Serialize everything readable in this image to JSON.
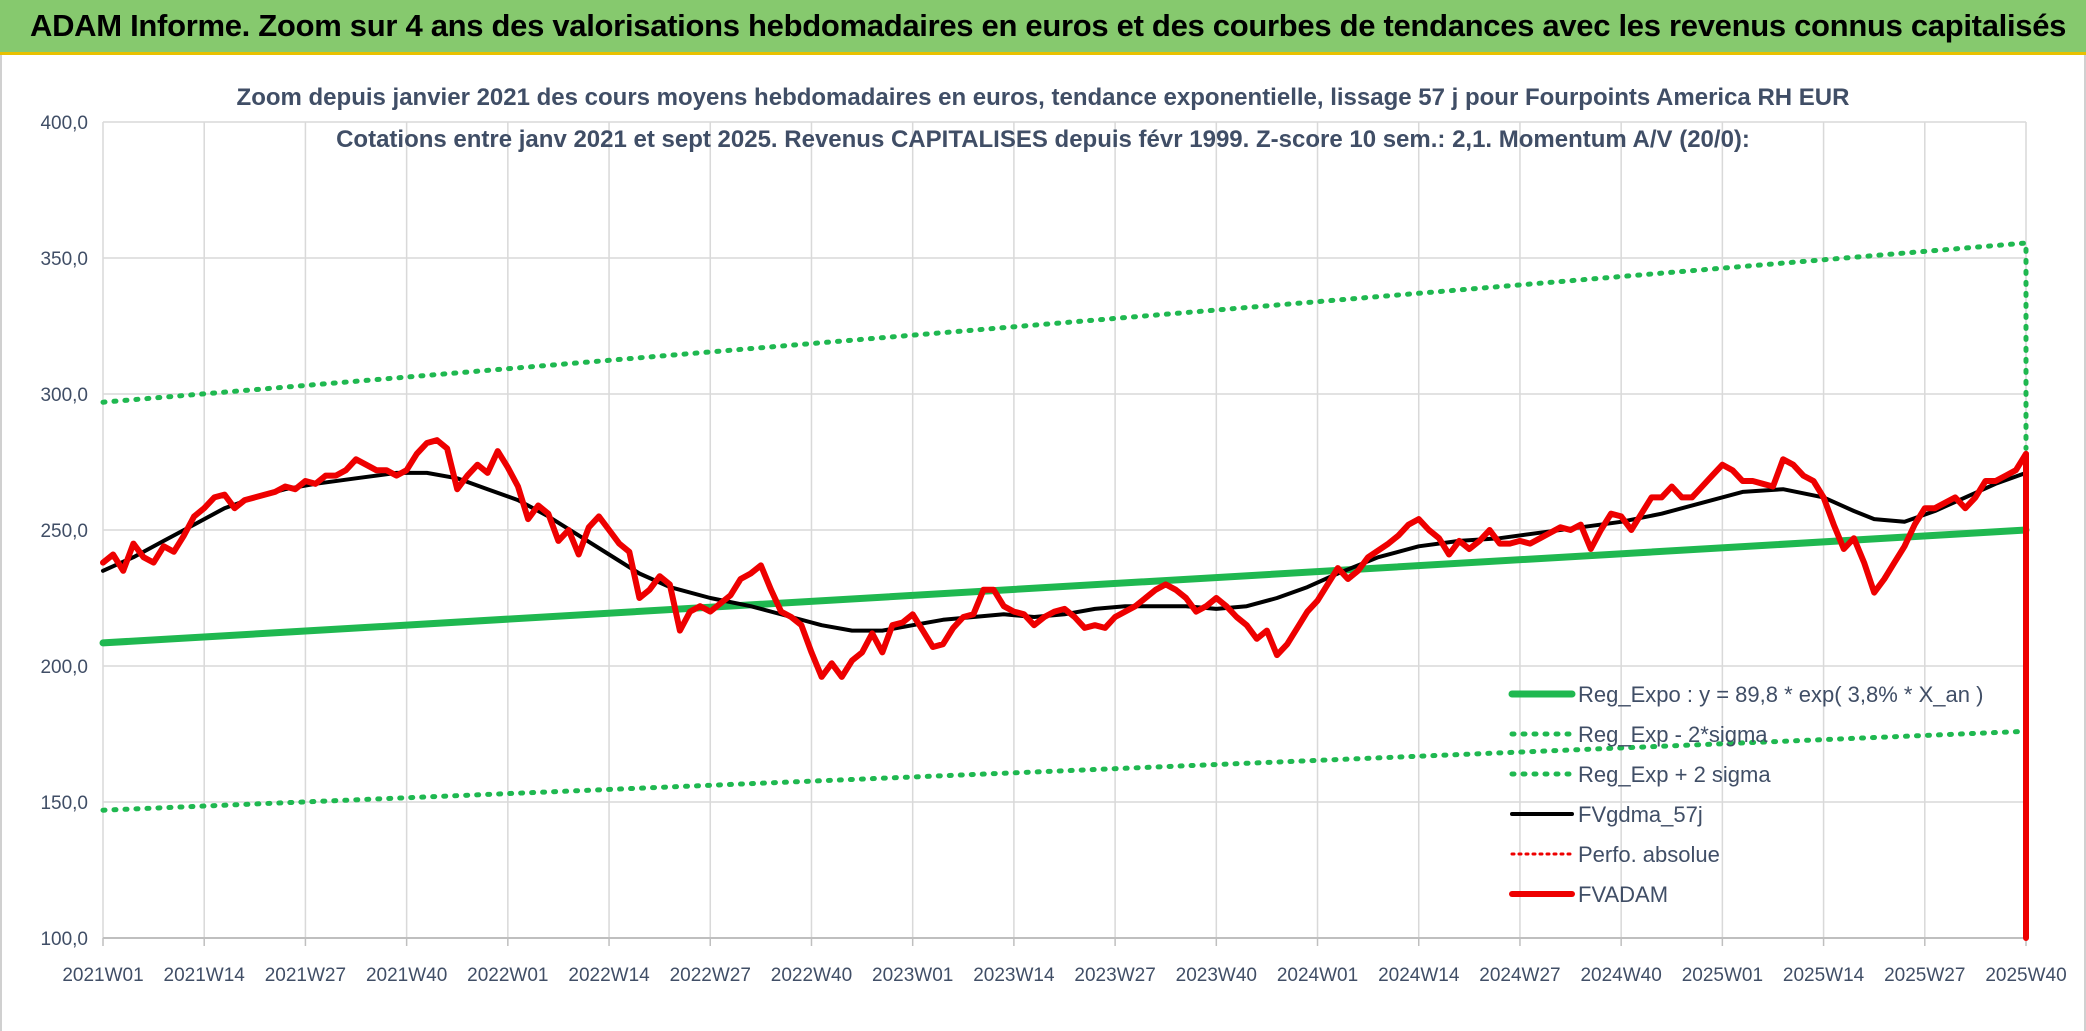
{
  "header": {
    "title": "ADAM Informe. Zoom sur 4 ans des valorisations hebdomadaires en euros et des courbes de tendances avec les revenus connus capitalisés"
  },
  "colors": {
    "banner": "#86c96e",
    "trend": "#1fb850",
    "average": "#000000",
    "price": "#ee0000",
    "perf": "#ee0000"
  },
  "chart_data": {
    "type": "line",
    "title": "Zoom depuis janvier 2021 des cours moyens hebdomadaires en euros, tendance exponentielle, lissage 57 j pour Fourpoints America RH EUR",
    "subtitle": "Cotations entre janv 2021 et sept 2025. Revenus CAPITALISES depuis févr 1999. Z-score 10 sem.: 2,1. Momentum A/V (20/0):",
    "xlabel": "",
    "ylabel": "",
    "ylim": [
      100,
      400
    ],
    "y_ticks": [
      "100,0",
      "150,0",
      "200,0",
      "250,0",
      "300,0",
      "350,0",
      "400,0"
    ],
    "x_tick_labels": [
      "2021W01",
      "2021W14",
      "2021W27",
      "2021W40",
      "2022W01",
      "2022W14",
      "2022W27",
      "2022W40",
      "2023W01",
      "2023W14",
      "2023W27",
      "2023W40",
      "2024W01",
      "2024W14",
      "2024W27",
      "2024W40",
      "2025W01",
      "2025W14",
      "2025W27",
      "2025W40"
    ],
    "grid": true,
    "legend_position": "bottom-right",
    "series": [
      {
        "name": "Reg_Expo : y = 89,8 * exp( 3,8% *  X_an )",
        "style": "solid-thick",
        "points": [
          [
            0,
            208.5
          ],
          [
            19,
            250
          ]
        ]
      },
      {
        "name": "Reg_Exp - 2*sigma",
        "style": "dotted",
        "points": [
          [
            0,
            147
          ],
          [
            19,
            176
          ]
        ]
      },
      {
        "name": "Reg_Exp + 2 sigma",
        "style": "dotted",
        "points": [
          [
            0,
            297
          ],
          [
            19,
            355.5
          ],
          [
            19,
            280
          ]
        ]
      },
      {
        "name": "FVgdma_57j",
        "style": "solid",
        "points": [
          [
            0,
            235
          ],
          [
            0.3,
            240
          ],
          [
            0.6,
            246
          ],
          [
            0.9,
            252
          ],
          [
            1.2,
            258
          ],
          [
            1.5,
            262
          ],
          [
            1.8,
            265
          ],
          [
            2.1,
            267
          ],
          [
            2.5,
            269
          ],
          [
            2.9,
            271
          ],
          [
            3.2,
            271
          ],
          [
            3.5,
            269
          ],
          [
            3.8,
            265
          ],
          [
            4.1,
            261
          ],
          [
            4.4,
            255
          ],
          [
            4.7,
            248
          ],
          [
            5.0,
            241
          ],
          [
            5.3,
            234
          ],
          [
            5.6,
            229
          ],
          [
            6.0,
            225
          ],
          [
            6.4,
            222
          ],
          [
            6.8,
            218
          ],
          [
            7.1,
            215
          ],
          [
            7.4,
            213
          ],
          [
            7.7,
            213
          ],
          [
            8.0,
            215
          ],
          [
            8.3,
            217
          ],
          [
            8.6,
            218
          ],
          [
            8.9,
            219
          ],
          [
            9.2,
            218
          ],
          [
            9.5,
            219
          ],
          [
            9.8,
            221
          ],
          [
            10.1,
            222
          ],
          [
            10.4,
            222
          ],
          [
            10.7,
            222
          ],
          [
            11.0,
            221
          ],
          [
            11.3,
            222
          ],
          [
            11.6,
            225
          ],
          [
            11.9,
            229
          ],
          [
            12.2,
            234
          ],
          [
            12.6,
            240
          ],
          [
            13.0,
            244
          ],
          [
            13.4,
            246
          ],
          [
            13.8,
            247
          ],
          [
            14.2,
            249
          ],
          [
            14.6,
            251
          ],
          [
            15.0,
            253
          ],
          [
            15.4,
            256
          ],
          [
            15.8,
            260
          ],
          [
            16.2,
            264
          ],
          [
            16.6,
            265
          ],
          [
            17.0,
            262
          ],
          [
            17.3,
            257
          ],
          [
            17.5,
            254
          ],
          [
            17.8,
            253
          ],
          [
            18.1,
            257
          ],
          [
            18.4,
            262
          ],
          [
            18.7,
            267
          ],
          [
            19.0,
            271
          ]
        ]
      },
      {
        "name": "Perfo. absolue",
        "style": "dotted",
        "points": []
      },
      {
        "name": "FVADAM",
        "style": "solid-thick",
        "points": [
          [
            0,
            238
          ],
          [
            0.1,
            241
          ],
          [
            0.2,
            235
          ],
          [
            0.3,
            245
          ],
          [
            0.4,
            240
          ],
          [
            0.5,
            238
          ],
          [
            0.6,
            244
          ],
          [
            0.7,
            242
          ],
          [
            0.8,
            248
          ],
          [
            0.9,
            255
          ],
          [
            1.0,
            258
          ],
          [
            1.1,
            262
          ],
          [
            1.2,
            263
          ],
          [
            1.3,
            258
          ],
          [
            1.4,
            261
          ],
          [
            1.5,
            262
          ],
          [
            1.6,
            263
          ],
          [
            1.7,
            264
          ],
          [
            1.8,
            266
          ],
          [
            1.9,
            265
          ],
          [
            2.0,
            268
          ],
          [
            2.1,
            267
          ],
          [
            2.2,
            270
          ],
          [
            2.3,
            270
          ],
          [
            2.4,
            272
          ],
          [
            2.5,
            276
          ],
          [
            2.6,
            274
          ],
          [
            2.7,
            272
          ],
          [
            2.8,
            272
          ],
          [
            2.9,
            270
          ],
          [
            3.0,
            272
          ],
          [
            3.1,
            278
          ],
          [
            3.2,
            282
          ],
          [
            3.3,
            283
          ],
          [
            3.4,
            280
          ],
          [
            3.5,
            265
          ],
          [
            3.6,
            270
          ],
          [
            3.7,
            274
          ],
          [
            3.8,
            271
          ],
          [
            3.9,
            279
          ],
          [
            4.0,
            273
          ],
          [
            4.1,
            266
          ],
          [
            4.2,
            254
          ],
          [
            4.3,
            259
          ],
          [
            4.4,
            256
          ],
          [
            4.5,
            246
          ],
          [
            4.6,
            250
          ],
          [
            4.7,
            241
          ],
          [
            4.8,
            251
          ],
          [
            4.9,
            255
          ],
          [
            5.0,
            250
          ],
          [
            5.1,
            245
          ],
          [
            5.2,
            242
          ],
          [
            5.3,
            225
          ],
          [
            5.4,
            228
          ],
          [
            5.5,
            233
          ],
          [
            5.6,
            230
          ],
          [
            5.7,
            213
          ],
          [
            5.8,
            220
          ],
          [
            5.9,
            222
          ],
          [
            6.0,
            220
          ],
          [
            6.2,
            226
          ],
          [
            6.3,
            232
          ],
          [
            6.4,
            234
          ],
          [
            6.5,
            237
          ],
          [
            6.6,
            228
          ],
          [
            6.7,
            220
          ],
          [
            6.8,
            218
          ],
          [
            6.9,
            215
          ],
          [
            7.0,
            205
          ],
          [
            7.1,
            196
          ],
          [
            7.2,
            201
          ],
          [
            7.3,
            196
          ],
          [
            7.4,
            202
          ],
          [
            7.5,
            205
          ],
          [
            7.6,
            212
          ],
          [
            7.7,
            205
          ],
          [
            7.8,
            215
          ],
          [
            7.9,
            216
          ],
          [
            8.0,
            219
          ],
          [
            8.1,
            213
          ],
          [
            8.2,
            207
          ],
          [
            8.3,
            208
          ],
          [
            8.4,
            214
          ],
          [
            8.5,
            218
          ],
          [
            8.6,
            219
          ],
          [
            8.7,
            228
          ],
          [
            8.8,
            228
          ],
          [
            8.9,
            222
          ],
          [
            9.0,
            220
          ],
          [
            9.1,
            219
          ],
          [
            9.2,
            215
          ],
          [
            9.3,
            218
          ],
          [
            9.4,
            220
          ],
          [
            9.5,
            221
          ],
          [
            9.6,
            218
          ],
          [
            9.7,
            214
          ],
          [
            9.8,
            215
          ],
          [
            9.9,
            214
          ],
          [
            10.0,
            218
          ],
          [
            10.2,
            222
          ],
          [
            10.4,
            228
          ],
          [
            10.5,
            230
          ],
          [
            10.6,
            228
          ],
          [
            10.7,
            225
          ],
          [
            10.8,
            220
          ],
          [
            10.9,
            222
          ],
          [
            11.0,
            225
          ],
          [
            11.1,
            222
          ],
          [
            11.2,
            218
          ],
          [
            11.3,
            215
          ],
          [
            11.4,
            210
          ],
          [
            11.5,
            213
          ],
          [
            11.6,
            204
          ],
          [
            11.7,
            208
          ],
          [
            11.8,
            214
          ],
          [
            11.9,
            220
          ],
          [
            12.0,
            224
          ],
          [
            12.1,
            230
          ],
          [
            12.2,
            236
          ],
          [
            12.3,
            232
          ],
          [
            12.4,
            235
          ],
          [
            12.5,
            240
          ],
          [
            12.7,
            245
          ],
          [
            12.8,
            248
          ],
          [
            12.9,
            252
          ],
          [
            13.0,
            254
          ],
          [
            13.1,
            250
          ],
          [
            13.2,
            247
          ],
          [
            13.3,
            241
          ],
          [
            13.4,
            246
          ],
          [
            13.5,
            243
          ],
          [
            13.6,
            246
          ],
          [
            13.7,
            250
          ],
          [
            13.8,
            245
          ],
          [
            13.9,
            245
          ],
          [
            14.0,
            246
          ],
          [
            14.1,
            245
          ],
          [
            14.2,
            247
          ],
          [
            14.3,
            249
          ],
          [
            14.4,
            251
          ],
          [
            14.5,
            250
          ],
          [
            14.6,
            252
          ],
          [
            14.7,
            243
          ],
          [
            14.8,
            250
          ],
          [
            14.9,
            256
          ],
          [
            15.0,
            255
          ],
          [
            15.1,
            250
          ],
          [
            15.2,
            256
          ],
          [
            15.3,
            262
          ],
          [
            15.4,
            262
          ],
          [
            15.5,
            266
          ],
          [
            15.6,
            262
          ],
          [
            15.7,
            262
          ],
          [
            15.8,
            266
          ],
          [
            15.9,
            270
          ],
          [
            16.0,
            274
          ],
          [
            16.1,
            272
          ],
          [
            16.2,
            268
          ],
          [
            16.3,
            268
          ],
          [
            16.4,
            267
          ],
          [
            16.5,
            266
          ],
          [
            16.6,
            276
          ],
          [
            16.7,
            274
          ],
          [
            16.8,
            270
          ],
          [
            16.9,
            268
          ],
          [
            17.0,
            262
          ],
          [
            17.1,
            252
          ],
          [
            17.2,
            243
          ],
          [
            17.3,
            247
          ],
          [
            17.4,
            238
          ],
          [
            17.5,
            227
          ],
          [
            17.6,
            232
          ],
          [
            17.7,
            238
          ],
          [
            17.8,
            244
          ],
          [
            17.9,
            252
          ],
          [
            18.0,
            258
          ],
          [
            18.1,
            258
          ],
          [
            18.2,
            260
          ],
          [
            18.3,
            262
          ],
          [
            18.4,
            258
          ],
          [
            18.5,
            262
          ],
          [
            18.6,
            268
          ],
          [
            18.7,
            268
          ],
          [
            18.8,
            270
          ],
          [
            18.9,
            272
          ],
          [
            19.0,
            278
          ],
          [
            19.0,
            100
          ]
        ]
      }
    ]
  }
}
